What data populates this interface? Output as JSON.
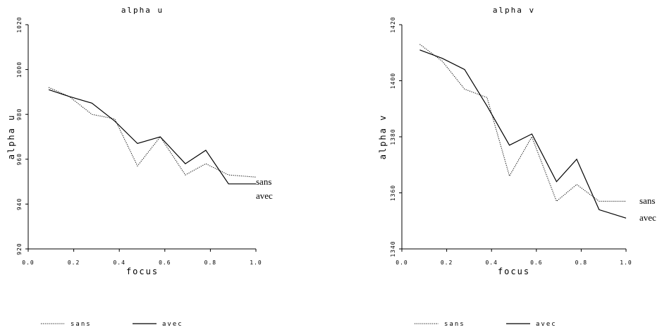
{
  "chart_data": [
    {
      "type": "line",
      "title": "alpha u",
      "xlabel": "focus",
      "ylabel": "alpha u",
      "xlim": [
        0.0,
        1.0
      ],
      "ylim": [
        920,
        1020
      ],
      "xticks": [
        "0.0",
        "0.2",
        "0.4",
        "0.6",
        "0.8",
        "1.0"
      ],
      "yticks": [
        "920",
        "940",
        "960",
        "980",
        "1000",
        "1020"
      ],
      "series": [
        {
          "name": "sans",
          "style": "dotted",
          "x": [
            0.09,
            0.18,
            0.28,
            0.38,
            0.48,
            0.58,
            0.69,
            0.78,
            0.88,
            1.0
          ],
          "y": [
            992,
            988,
            980,
            978,
            957,
            970,
            953,
            958,
            953,
            952
          ]
        },
        {
          "name": "avec",
          "style": "solid",
          "x": [
            0.09,
            0.18,
            0.28,
            0.38,
            0.48,
            0.58,
            0.69,
            0.78,
            0.88,
            1.0
          ],
          "y": [
            991,
            988,
            985,
            977,
            967,
            970,
            958,
            964,
            949,
            949
          ]
        }
      ],
      "annotations": [
        "sans",
        "avec"
      ],
      "legend": [
        "sans",
        "avec"
      ],
      "legend_position": "bottom",
      "grid": false
    },
    {
      "type": "line",
      "title": "alpha v",
      "xlabel": "focus",
      "ylabel": "alpha v",
      "xlim": [
        0.0,
        1.0
      ],
      "ylim": [
        1340,
        1420
      ],
      "xticks": [
        "0.0",
        "0.2",
        "0.4",
        "0.6",
        "0.8",
        "1.0"
      ],
      "yticks": [
        "1340",
        "1360",
        "1380",
        "1400",
        "1420"
      ],
      "series": [
        {
          "name": "sans",
          "style": "dotted",
          "x": [
            0.08,
            0.18,
            0.28,
            0.38,
            0.48,
            0.58,
            0.69,
            0.78,
            0.88,
            1.0
          ],
          "y": [
            1413,
            1407,
            1397,
            1394,
            1366,
            1380,
            1357,
            1363,
            1357,
            1357
          ]
        },
        {
          "name": "avec",
          "style": "solid",
          "x": [
            0.08,
            0.18,
            0.28,
            0.38,
            0.48,
            0.58,
            0.69,
            0.78,
            0.88,
            1.0
          ],
          "y": [
            1411,
            1408,
            1404,
            1391,
            1377,
            1381,
            1364,
            1372,
            1354,
            1351
          ]
        }
      ],
      "annotations": [
        "sans",
        "avec"
      ],
      "legend": [
        "sans",
        "avec"
      ],
      "legend_position": "bottom",
      "grid": false
    }
  ]
}
